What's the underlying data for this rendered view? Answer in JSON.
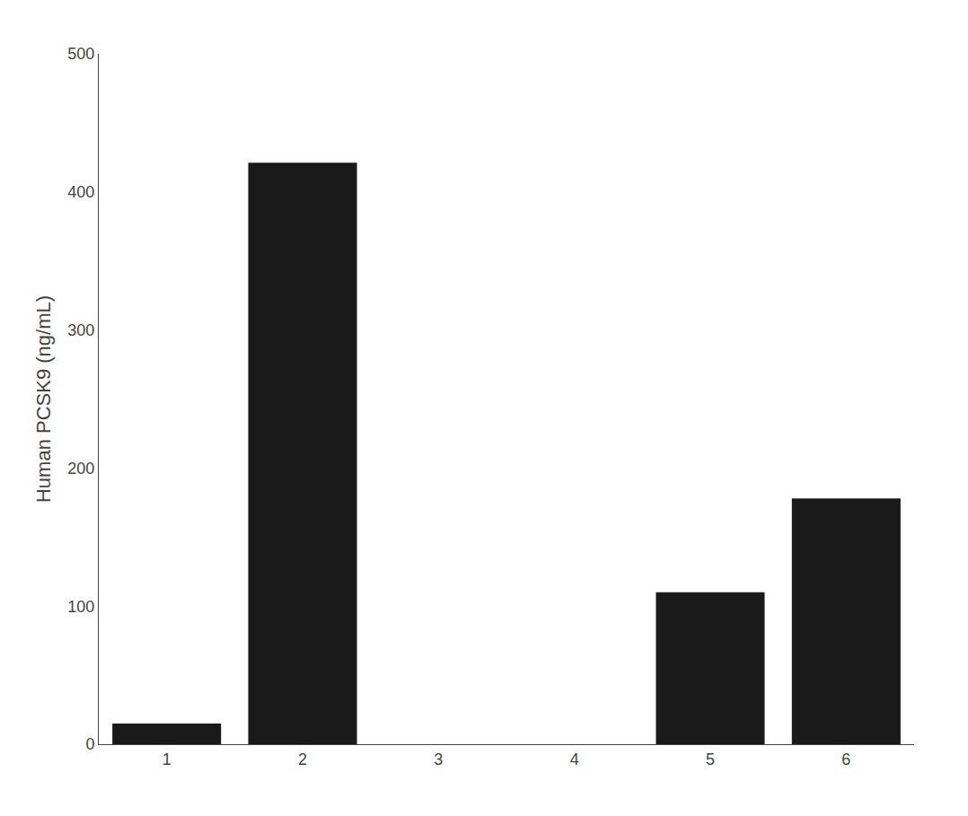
{
  "chart_data": {
    "type": "bar",
    "ylabel": "Human PCSK9 (ng/mL)",
    "categories": [
      1,
      2,
      3,
      4,
      5,
      6
    ],
    "values": [
      15.0,
      421.1,
      0.0,
      0.0,
      110.0,
      178.0
    ],
    "color": "#1a1a1a",
    "ylim": [
      0,
      500
    ],
    "yticks": [
      0,
      100,
      200,
      300,
      400,
      500
    ],
    "grid": false
  }
}
